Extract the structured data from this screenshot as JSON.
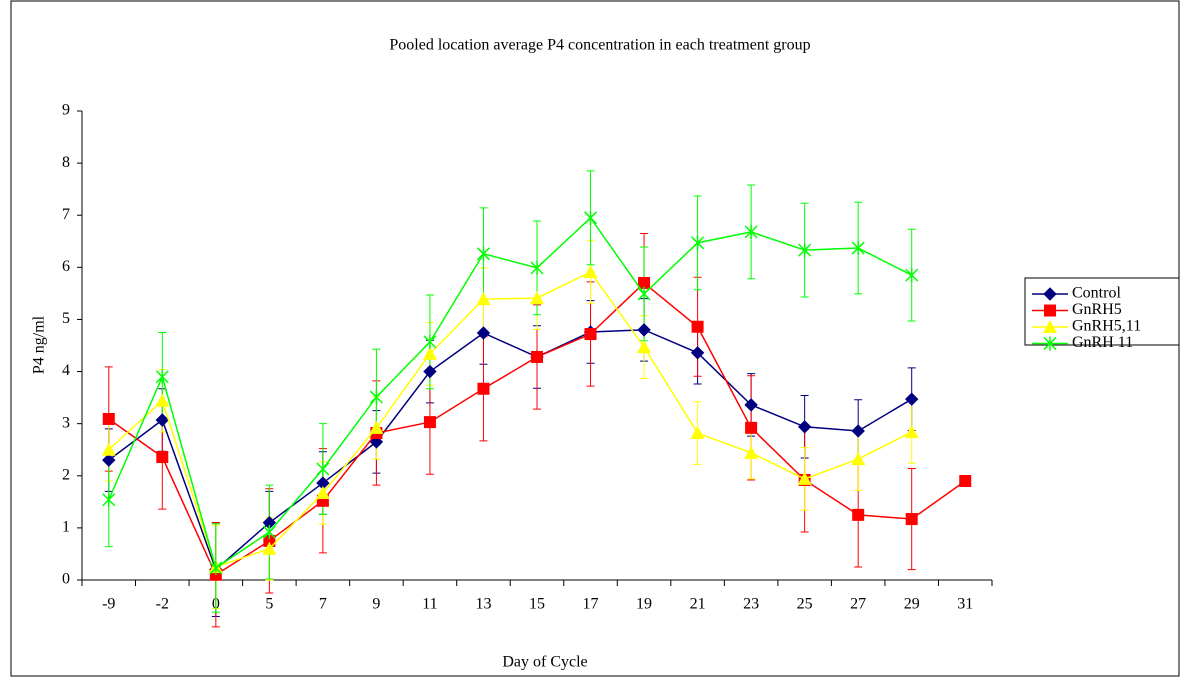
{
  "chart_data": {
    "type": "line",
    "title": "Pooled location average P4 concentration in each treatment group",
    "x_label": "Day of Cycle",
    "y_label": "P4 ng/ml",
    "categories": [
      "-9",
      "-2",
      "0",
      "5",
      "7",
      "9",
      "11",
      "13",
      "15",
      "17",
      "19",
      "21",
      "23",
      "25",
      "27",
      "29",
      "31"
    ],
    "ylim": [
      0,
      9
    ],
    "yticks": [
      0,
      1,
      2,
      3,
      4,
      5,
      6,
      7,
      8,
      9
    ],
    "grid": false,
    "legend": "right",
    "series": [
      {
        "name": "Control",
        "color": "#000080",
        "marker": "diamond",
        "values": [
          2.3,
          3.07,
          0.2,
          1.1,
          1.86,
          2.65,
          4.0,
          4.74,
          4.28,
          4.76,
          4.8,
          4.36,
          3.36,
          2.94,
          2.86,
          3.47,
          null
        ],
        "errors": [
          0.6,
          0.6,
          0.9,
          0.6,
          0.6,
          0.6,
          0.6,
          0.6,
          0.6,
          0.6,
          0.6,
          0.6,
          0.6,
          0.6,
          0.6,
          0.6,
          null
        ]
      },
      {
        "name": "GnRH5",
        "color": "#ff0000",
        "marker": "square",
        "values": [
          3.09,
          2.36,
          0.1,
          0.75,
          1.52,
          2.82,
          3.03,
          3.67,
          4.28,
          4.72,
          5.7,
          4.86,
          2.92,
          1.92,
          1.25,
          1.17,
          1.9
        ],
        "errors": [
          1.0,
          1.0,
          1.0,
          1.0,
          1.0,
          1.0,
          1.0,
          1.0,
          1.0,
          1.0,
          0.95,
          0.95,
          1.0,
          1.0,
          1.0,
          0.97,
          null
        ]
      },
      {
        "name": "GnRH5,11",
        "color": "#ffff00",
        "marker": "triangle",
        "values": [
          2.5,
          3.44,
          0.25,
          0.6,
          1.67,
          2.92,
          4.34,
          5.39,
          5.41,
          5.91,
          4.47,
          2.82,
          2.44,
          1.94,
          2.32,
          2.84,
          null
        ],
        "errors": [
          0.6,
          0.6,
          0.8,
          0.6,
          0.6,
          0.6,
          0.6,
          0.6,
          0.6,
          0.6,
          0.6,
          0.6,
          0.5,
          0.6,
          0.6,
          0.6,
          null
        ]
      },
      {
        "name": "GnRH 11",
        "color": "#00ff00",
        "marker": "star",
        "values": [
          1.54,
          3.9,
          0.23,
          0.92,
          2.13,
          3.51,
          4.57,
          6.26,
          5.99,
          6.95,
          5.49,
          6.47,
          6.68,
          6.33,
          6.37,
          5.85,
          null
        ],
        "errors": [
          0.9,
          0.85,
          0.85,
          0.9,
          0.87,
          0.92,
          0.9,
          0.88,
          0.9,
          0.9,
          0.9,
          0.9,
          0.9,
          0.9,
          0.88,
          0.88,
          null
        ]
      }
    ]
  }
}
